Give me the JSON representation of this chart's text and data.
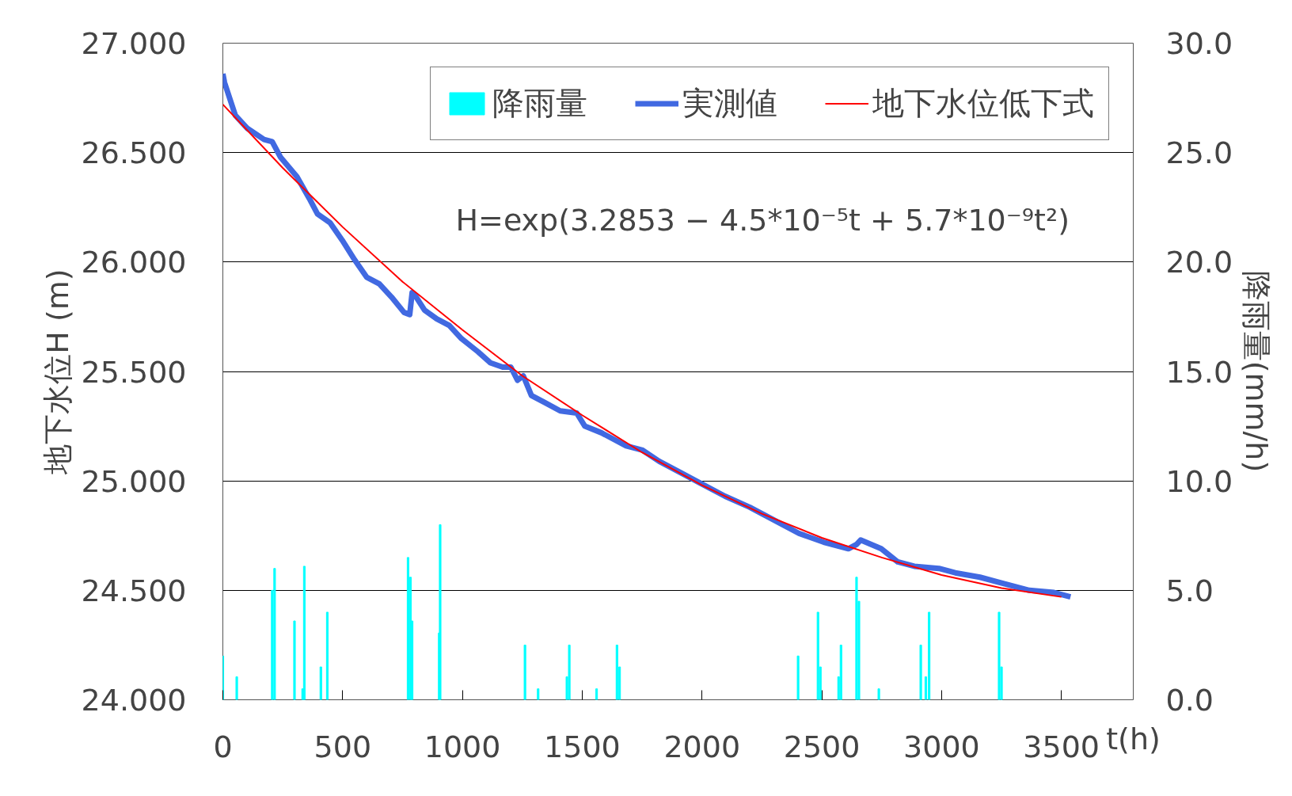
{
  "chart_data": {
    "type": "line",
    "xlabel": "t(h)",
    "ylabel": "地下水位H (m)",
    "y2label": "降雨量(mm/h)",
    "xlim": [
      0,
      3800
    ],
    "xticks": [
      0,
      500,
      1000,
      1500,
      2000,
      2500,
      3000,
      3500
    ],
    "ylim": [
      24,
      27
    ],
    "yticks": [
      {
        "value": 24,
        "label": "24.000"
      },
      {
        "value": 24.5,
        "label": "24.500"
      },
      {
        "value": 25,
        "label": "25.000"
      },
      {
        "value": 25.5,
        "label": "25.500"
      },
      {
        "value": 26,
        "label": "26.000"
      },
      {
        "value": 26.5,
        "label": "26.500"
      },
      {
        "value": 27,
        "label": "27.000"
      }
    ],
    "y2lim": [
      0,
      30
    ],
    "y2ticks": [
      {
        "value": 0,
        "label": "0.0"
      },
      {
        "value": 5,
        "label": "5.0"
      },
      {
        "value": 10,
        "label": "10.0"
      },
      {
        "value": 15,
        "label": "15.0"
      },
      {
        "value": 20,
        "label": "20.0"
      },
      {
        "value": 25,
        "label": "25.0"
      },
      {
        "value": 30,
        "label": "30.0"
      }
    ],
    "grid": "y",
    "legend": "top right",
    "annotations": [
      "H=exp(3.2853 − 4.5*10⁻⁵t + 5.7*10⁻⁹t²)"
    ],
    "series": [
      {
        "name": "降雨量",
        "type": "bar",
        "axis": "y2",
        "color": "#00ffff",
        "x": [
          0,
          58,
          206,
          216,
          299,
          333,
          340,
          409,
          436,
          773,
          783,
          790,
          903,
          907,
          1261,
          1316,
          1436,
          1446,
          1560,
          1645,
          1656,
          2401,
          2484,
          2494,
          2570,
          2580,
          2645,
          2655,
          2738,
          2913,
          2934,
          2948,
          3240,
          3250
        ],
        "values": [
          2.0,
          1.05,
          5.0,
          6.0,
          3.6,
          0.5,
          6.1,
          1.5,
          4.0,
          6.5,
          5.6,
          3.6,
          3.05,
          8.0,
          2.5,
          0.5,
          1.05,
          2.5,
          0.5,
          2.5,
          1.5,
          2.0,
          4.0,
          1.5,
          1.05,
          2.5,
          5.6,
          4.5,
          0.5,
          2.5,
          1.05,
          4.0,
          4.0,
          1.5
        ]
      },
      {
        "name": "実測値",
        "color": "#4169e1",
        "x": [
          0,
          7,
          52,
          103,
          172,
          206,
          240,
          309,
          361,
          395,
          447,
          498,
          550,
          601,
          653,
          704,
          756,
          780,
          790,
          807,
          842,
          893,
          945,
          996,
          1065,
          1116,
          1168,
          1202,
          1230,
          1254,
          1288,
          1340,
          1408,
          1477,
          1511,
          1580,
          1683,
          1752,
          1821,
          1924,
          1992,
          2096,
          2199,
          2302,
          2405,
          2508,
          2611,
          2645,
          2662,
          2748,
          2817,
          2886,
          2989,
          3057,
          3160,
          3263,
          3366,
          3469,
          3538
        ],
        "values": [
          26.86,
          26.82,
          26.67,
          26.61,
          26.56,
          26.55,
          26.48,
          26.39,
          26.29,
          26.22,
          26.18,
          26.1,
          26.01,
          25.93,
          25.9,
          25.84,
          25.77,
          25.76,
          25.86,
          25.84,
          25.78,
          25.74,
          25.71,
          25.65,
          25.59,
          25.54,
          25.52,
          25.52,
          25.46,
          25.48,
          25.39,
          25.36,
          25.32,
          25.31,
          25.25,
          25.22,
          25.16,
          25.14,
          25.09,
          25.03,
          24.99,
          24.93,
          24.88,
          24.82,
          24.76,
          24.72,
          24.69,
          24.71,
          24.73,
          24.69,
          24.63,
          24.61,
          24.6,
          24.58,
          24.56,
          24.53,
          24.5,
          24.49,
          24.47
        ]
      },
      {
        "name": "地下水位低下式",
        "color": "#ff0000",
        "x": [
          0,
          250,
          500,
          750,
          1000,
          1250,
          1500,
          1750,
          2000,
          2250,
          2500,
          2750,
          3000,
          3250,
          3500
        ],
        "values": [
          26.72,
          26.43,
          26.16,
          25.91,
          25.69,
          25.48,
          25.3,
          25.13,
          24.98,
          24.85,
          24.74,
          24.65,
          24.57,
          24.51,
          24.47
        ]
      }
    ]
  }
}
